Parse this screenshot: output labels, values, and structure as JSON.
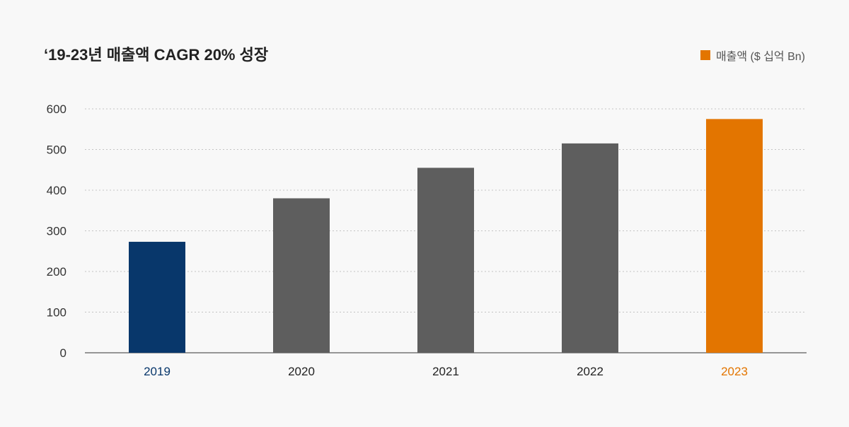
{
  "title": "‘19-23년 매출액 CAGR 20% 성장",
  "legend": {
    "label": "매출액 ($ 십억 Bn)",
    "color": "#e37500"
  },
  "chart_data": {
    "type": "bar",
    "categories": [
      "2019",
      "2020",
      "2021",
      "2022",
      "2023"
    ],
    "series": [
      {
        "name": "매출액 ($ 십억 Bn)",
        "values": [
          273,
          380,
          455,
          515,
          575
        ]
      }
    ],
    "bar_colors": [
      "#08376b",
      "#5e5e5e",
      "#5e5e5e",
      "#5e5e5e",
      "#e37500"
    ],
    "label_colors": [
      "#08376b",
      "#222222",
      "#222222",
      "#222222",
      "#e37500"
    ],
    "yticks": [
      0,
      100,
      200,
      300,
      400,
      500,
      600
    ],
    "ylim": [
      0,
      600
    ],
    "grid": true,
    "legend_position": "top-right"
  }
}
